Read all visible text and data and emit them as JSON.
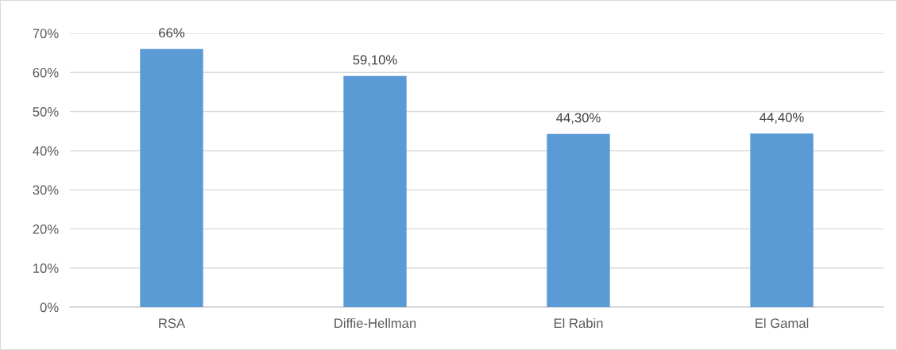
{
  "chart_data": {
    "type": "bar",
    "categories": [
      "RSA",
      "Diffie-Hellman",
      "El Rabin",
      "El Gamal"
    ],
    "values": [
      66,
      59.1,
      44.3,
      44.4
    ],
    "value_labels": [
      "66%",
      "59,10%",
      "44,30%",
      "44,40%"
    ],
    "color": "#5b9bd5",
    "ylim": [
      0,
      70
    ],
    "yticks": [
      {
        "value": 0,
        "label": "0%"
      },
      {
        "value": 10,
        "label": "10%"
      },
      {
        "value": 20,
        "label": "20%"
      },
      {
        "value": 30,
        "label": "30%"
      },
      {
        "value": 40,
        "label": "40%"
      },
      {
        "value": 50,
        "label": "50%"
      },
      {
        "value": 60,
        "label": "60%"
      },
      {
        "value": 70,
        "label": "70%"
      }
    ],
    "grid": "y",
    "legend": false
  }
}
